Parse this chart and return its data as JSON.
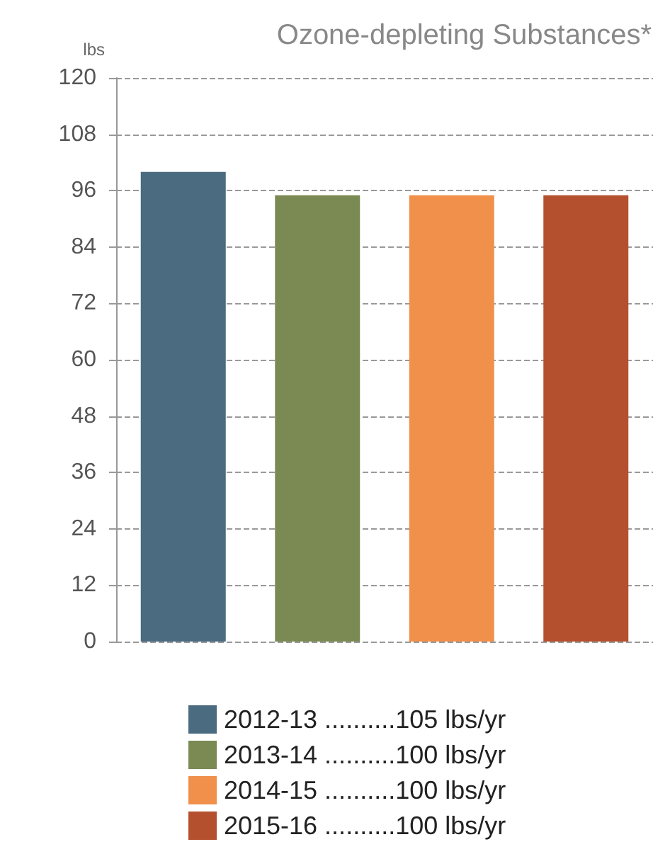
{
  "chart_data": {
    "type": "bar",
    "title": "Ozone-depleting Substances*",
    "ylabel": "lbs",
    "categories": [
      null,
      null,
      null,
      null
    ],
    "stacked": true,
    "series": [
      {
        "name": "2012-13 ..........105 lbs/yr",
        "color": "#4a6b80",
        "values": [
          100,
          null,
          null,
          null
        ]
      },
      {
        "name": "2013-14 ..........100 lbs/yr",
        "color": "#7a8a52",
        "values": [
          null,
          95,
          null,
          null
        ]
      },
      {
        "name": "2014-15 ..........100 lbs/yr",
        "color": "#f0904a",
        "values": [
          null,
          null,
          95,
          null
        ]
      },
      {
        "name": "2015-16 ..........100 lbs/yr",
        "color": "#b5502e",
        "values": [
          null,
          null,
          null,
          95
        ]
      }
    ],
    "ylim": [
      0,
      120
    ],
    "yticks": [
      0,
      12,
      24,
      36,
      48,
      60,
      72,
      84,
      96,
      108,
      120
    ],
    "grid": "y",
    "legend": "bottom"
  }
}
